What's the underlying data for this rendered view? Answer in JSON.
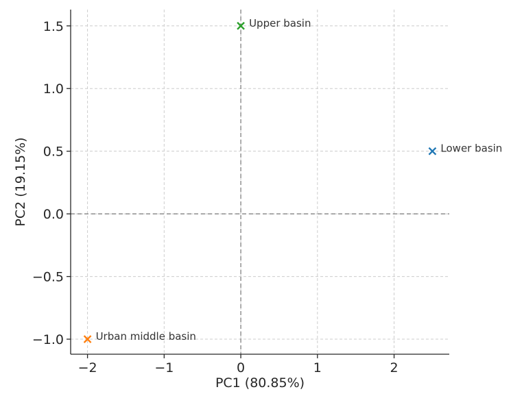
{
  "chart_data": {
    "type": "scatter",
    "xlabel": "PC1 (80.85%)",
    "ylabel": "PC2 (19.15%)",
    "xlim": [
      -2.22,
      2.72
    ],
    "ylim": [
      -1.12,
      1.63
    ],
    "x_ticks": [
      -2,
      -1,
      0,
      1,
      2
    ],
    "y_ticks": [
      -1.0,
      -0.5,
      0.0,
      0.5,
      1.0,
      1.5
    ],
    "x_tick_labels": [
      "−2",
      "−1",
      "0",
      "1",
      "2"
    ],
    "y_tick_labels": [
      "−1.0",
      "−0.5",
      "0.0",
      "0.5",
      "1.0",
      "1.5"
    ],
    "grid": true,
    "zero_lines": true,
    "marker": "x",
    "points": [
      {
        "label": "Lower basin",
        "x": 2.5,
        "y": 0.5,
        "color": "#1f77b4"
      },
      {
        "label": "Urban middle basin",
        "x": -2.0,
        "y": -1.0,
        "color": "#ff7f0e"
      },
      {
        "label": "Upper basin",
        "x": 0.0,
        "y": 1.5,
        "color": "#2ca02c"
      }
    ]
  }
}
